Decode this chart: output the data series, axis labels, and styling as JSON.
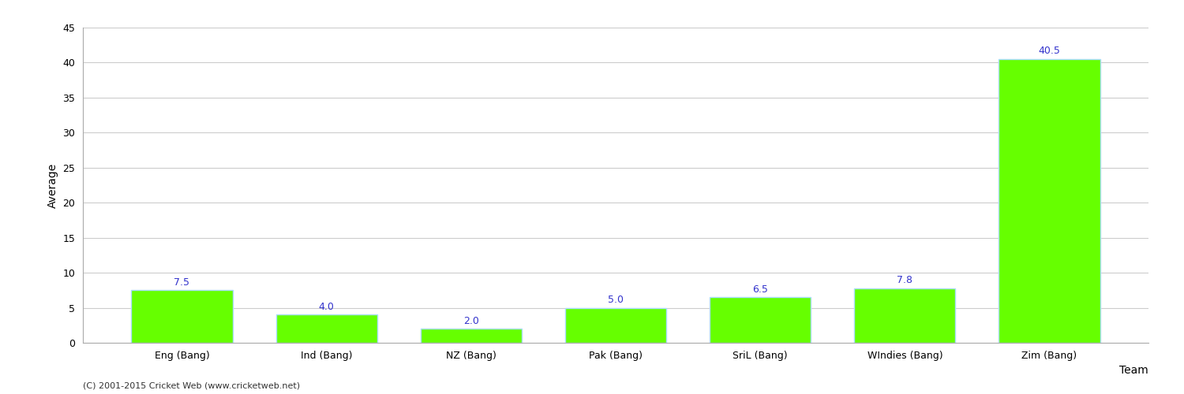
{
  "categories": [
    "Eng (Bang)",
    "Ind (Bang)",
    "NZ (Bang)",
    "Pak (Bang)",
    "SriL (Bang)",
    "WIndies (Bang)",
    "Zim (Bang)"
  ],
  "values": [
    7.5,
    4.0,
    2.0,
    5.0,
    6.5,
    7.8,
    40.5
  ],
  "bar_color": "#66ff00",
  "bar_edge_color": "#aaddff",
  "xlabel": "Team",
  "ylabel": "Average",
  "ylim": [
    0,
    45
  ],
  "yticks": [
    0,
    5,
    10,
    15,
    20,
    25,
    30,
    35,
    40,
    45
  ],
  "value_label_color": "#3333cc",
  "value_label_fontsize": 9,
  "axis_label_fontsize": 10,
  "tick_label_fontsize": 9,
  "background_color": "#ffffff",
  "grid_color": "#cccccc",
  "footer_text": "(C) 2001-2015 Cricket Web (www.cricketweb.net)",
  "footer_fontsize": 8,
  "footer_color": "#333333"
}
